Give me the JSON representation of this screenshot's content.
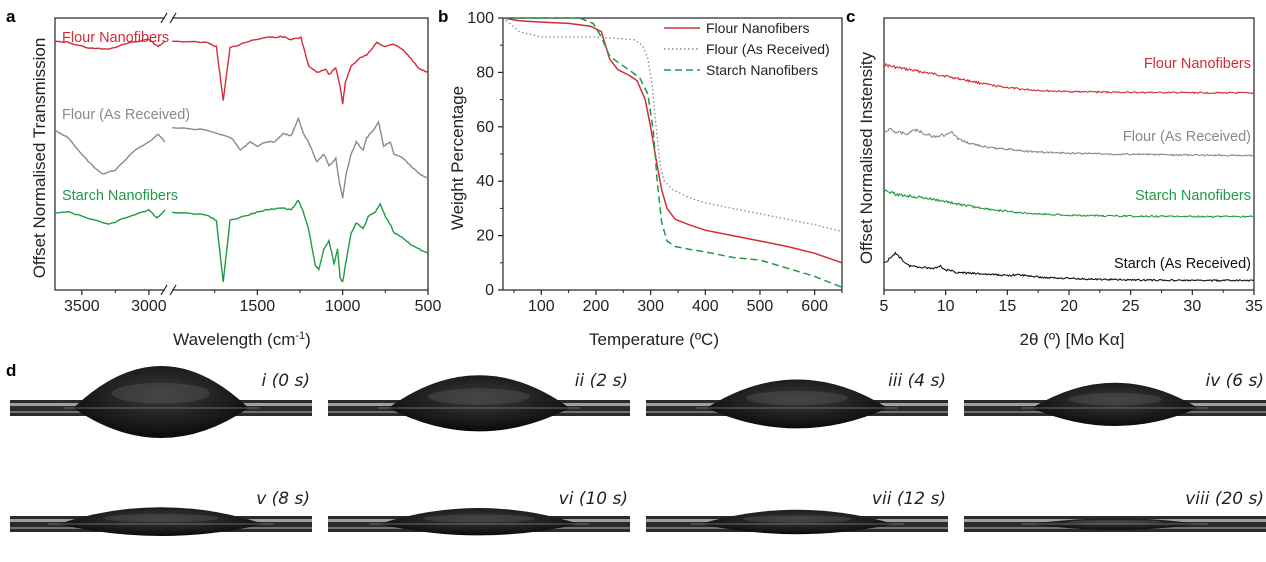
{
  "figure": {
    "panel_labels": [
      "a",
      "b",
      "c",
      "d"
    ],
    "colors": {
      "red": "#d42b3a",
      "gray": "#8a8a8a",
      "green": "#1f9a45",
      "black": "#111111"
    }
  },
  "chart_data": [
    {
      "panel": "a",
      "type": "line",
      "xlabel": "Wavelength (cm⁻¹)",
      "ylabel": "Offset Normalised Transmission",
      "xticks": [
        "3500",
        "3000",
        "1500",
        "1000",
        "500"
      ],
      "axis_break": true,
      "xlim_left": [
        3700,
        2880
      ],
      "xlim_right": [
        2000,
        500
      ],
      "series": [
        {
          "name": "Flour Nanofibers",
          "color": "#d42b3a",
          "points": [
            [
              3700,
              0.1
            ],
            [
              3600,
              0.12
            ],
            [
              3450,
              0.2
            ],
            [
              3300,
              0.22
            ],
            [
              3150,
              0.12
            ],
            [
              3000,
              0.08
            ],
            [
              2930,
              0.18
            ],
            [
              2880,
              0.1
            ],
            [
              2000,
              0.1
            ],
            [
              1800,
              0.12
            ],
            [
              1740,
              0.18
            ],
            [
              1700,
              0.95
            ],
            [
              1660,
              0.2
            ],
            [
              1550,
              0.1
            ],
            [
              1450,
              0.05
            ],
            [
              1350,
              0.04
            ],
            [
              1300,
              0.08
            ],
            [
              1245,
              0.05
            ],
            [
              1200,
              0.45
            ],
            [
              1150,
              0.55
            ],
            [
              1100,
              0.5
            ],
            [
              1080,
              0.58
            ],
            [
              1040,
              0.48
            ],
            [
              1015,
              0.75
            ],
            [
              1000,
              1.0
            ],
            [
              985,
              0.7
            ],
            [
              950,
              0.45
            ],
            [
              900,
              0.35
            ],
            [
              860,
              0.3
            ],
            [
              830,
              0.22
            ],
            [
              800,
              0.12
            ],
            [
              760,
              0.18
            ],
            [
              700,
              0.15
            ],
            [
              650,
              0.22
            ],
            [
              600,
              0.35
            ],
            [
              550,
              0.5
            ],
            [
              500,
              0.55
            ]
          ]
        },
        {
          "name": "Flour (As Received)",
          "color": "#8a8a8a",
          "points": [
            [
              3700,
              0.15
            ],
            [
              3600,
              0.25
            ],
            [
              3450,
              0.55
            ],
            [
              3350,
              0.7
            ],
            [
              3250,
              0.65
            ],
            [
              3100,
              0.4
            ],
            [
              3000,
              0.3
            ],
            [
              2930,
              0.2
            ],
            [
              2880,
              0.3
            ],
            [
              2000,
              0.12
            ],
            [
              1800,
              0.15
            ],
            [
              1650,
              0.25
            ],
            [
              1600,
              0.4
            ],
            [
              1540,
              0.3
            ],
            [
              1500,
              0.35
            ],
            [
              1450,
              0.3
            ],
            [
              1400,
              0.3
            ],
            [
              1350,
              0.2
            ],
            [
              1300,
              0.22
            ],
            [
              1260,
              0.0
            ],
            [
              1230,
              0.2
            ],
            [
              1200,
              0.3
            ],
            [
              1150,
              0.55
            ],
            [
              1110,
              0.45
            ],
            [
              1080,
              0.6
            ],
            [
              1040,
              0.5
            ],
            [
              1020,
              0.8
            ],
            [
              1000,
              1.0
            ],
            [
              980,
              0.7
            ],
            [
              950,
              0.45
            ],
            [
              920,
              0.3
            ],
            [
              880,
              0.4
            ],
            [
              860,
              0.25
            ],
            [
              820,
              0.15
            ],
            [
              790,
              0.05
            ],
            [
              760,
              0.35
            ],
            [
              720,
              0.3
            ],
            [
              700,
              0.45
            ],
            [
              650,
              0.5
            ],
            [
              600,
              0.6
            ],
            [
              550,
              0.7
            ],
            [
              500,
              0.75
            ]
          ]
        },
        {
          "name": "Starch Nanofibers",
          "color": "#1f9a45",
          "points": [
            [
              3700,
              0.15
            ],
            [
              3600,
              0.15
            ],
            [
              3450,
              0.22
            ],
            [
              3300,
              0.3
            ],
            [
              3150,
              0.2
            ],
            [
              3000,
              0.12
            ],
            [
              2940,
              0.22
            ],
            [
              2880,
              0.12
            ],
            [
              2000,
              0.15
            ],
            [
              1800,
              0.18
            ],
            [
              1740,
              0.25
            ],
            [
              1700,
              1.0
            ],
            [
              1660,
              0.25
            ],
            [
              1550,
              0.18
            ],
            [
              1450,
              0.12
            ],
            [
              1350,
              0.1
            ],
            [
              1300,
              0.12
            ],
            [
              1260,
              0.0
            ],
            [
              1230,
              0.15
            ],
            [
              1200,
              0.35
            ],
            [
              1160,
              0.8
            ],
            [
              1140,
              0.85
            ],
            [
              1110,
              0.6
            ],
            [
              1080,
              0.5
            ],
            [
              1050,
              0.78
            ],
            [
              1030,
              0.6
            ],
            [
              1015,
              0.95
            ],
            [
              1000,
              1.0
            ],
            [
              980,
              0.75
            ],
            [
              950,
              0.4
            ],
            [
              920,
              0.28
            ],
            [
              880,
              0.35
            ],
            [
              850,
              0.2
            ],
            [
              810,
              0.15
            ],
            [
              780,
              0.05
            ],
            [
              750,
              0.2
            ],
            [
              720,
              0.3
            ],
            [
              700,
              0.4
            ],
            [
              650,
              0.45
            ],
            [
              600,
              0.55
            ],
            [
              550,
              0.6
            ],
            [
              500,
              0.65
            ]
          ]
        }
      ]
    },
    {
      "panel": "b",
      "type": "line",
      "xlabel": "Temperature (ºC)",
      "ylabel": "Weight Percentage",
      "xlim": [
        30,
        650
      ],
      "ylim": [
        0,
        100
      ],
      "xticks": [
        100,
        200,
        300,
        400,
        500,
        600
      ],
      "yticks": [
        0,
        20,
        40,
        60,
        80,
        100
      ],
      "legend": "top-right",
      "series": [
        {
          "name": "Flour Nanofibers",
          "color": "#d42b3a",
          "style": "solid",
          "points": [
            [
              30,
              100
            ],
            [
              60,
              99
            ],
            [
              100,
              98.5
            ],
            [
              150,
              98
            ],
            [
              190,
              97
            ],
            [
              210,
              95
            ],
            [
              225,
              85
            ],
            [
              240,
              81
            ],
            [
              260,
              79
            ],
            [
              275,
              77
            ],
            [
              290,
              70
            ],
            [
              300,
              60
            ],
            [
              310,
              48
            ],
            [
              320,
              37
            ],
            [
              330,
              30
            ],
            [
              345,
              26
            ],
            [
              370,
              24
            ],
            [
              400,
              22
            ],
            [
              450,
              20
            ],
            [
              500,
              18
            ],
            [
              550,
              16
            ],
            [
              600,
              13.5
            ],
            [
              650,
              10
            ]
          ]
        },
        {
          "name": "Flour (As Received)",
          "color": "#8a8a8a",
          "style": "dotted",
          "points": [
            [
              30,
              100
            ],
            [
              60,
              95
            ],
            [
              100,
              93
            ],
            [
              150,
              93
            ],
            [
              200,
              93
            ],
            [
              240,
              92.5
            ],
            [
              270,
              92
            ],
            [
              285,
              90
            ],
            [
              295,
              85
            ],
            [
              303,
              75
            ],
            [
              310,
              60
            ],
            [
              318,
              45
            ],
            [
              325,
              40
            ],
            [
              340,
              37
            ],
            [
              370,
              34
            ],
            [
              400,
              32
            ],
            [
              450,
              30
            ],
            [
              500,
              28
            ],
            [
              550,
              26
            ],
            [
              600,
              24
            ],
            [
              650,
              21.5
            ]
          ]
        },
        {
          "name": "Starch Nanofibers",
          "color": "#1f9a45",
          "style": "dashed",
          "points": [
            [
              30,
              100
            ],
            [
              100,
              100
            ],
            [
              170,
              100
            ],
            [
              195,
              98
            ],
            [
              210,
              93
            ],
            [
              225,
              86
            ],
            [
              245,
              83
            ],
            [
              260,
              81
            ],
            [
              280,
              78
            ],
            [
              295,
              72
            ],
            [
              305,
              58
            ],
            [
              312,
              40
            ],
            [
              320,
              25
            ],
            [
              330,
              18
            ],
            [
              345,
              16
            ],
            [
              370,
              15
            ],
            [
              400,
              14
            ],
            [
              450,
              12
            ],
            [
              500,
              11
            ],
            [
              550,
              8
            ],
            [
              600,
              5
            ],
            [
              650,
              1
            ]
          ]
        }
      ]
    },
    {
      "panel": "c",
      "type": "line",
      "xlabel": "2θ (º) [Mo Kα]",
      "ylabel": "Offset Normalised Instensity",
      "xlim": [
        5,
        35
      ],
      "xticks": [
        5,
        10,
        15,
        20,
        25,
        30,
        35
      ],
      "series": [
        {
          "name": "Flour Nanofibers",
          "color": "#d42b3a",
          "points": [
            [
              5,
              1.0
            ],
            [
              6,
              0.9
            ],
            [
              8,
              0.75
            ],
            [
              10,
              0.6
            ],
            [
              12,
              0.42
            ],
            [
              14,
              0.25
            ],
            [
              16,
              0.14
            ],
            [
              18,
              0.08
            ],
            [
              20,
              0.05
            ],
            [
              25,
              0.02
            ],
            [
              30,
              0.01
            ],
            [
              35,
              0.0
            ]
          ]
        },
        {
          "name": "Flour (As Received)",
          "color": "#8a8a8a",
          "points": [
            [
              5,
              0.8
            ],
            [
              5.5,
              1.0
            ],
            [
              6,
              0.85
            ],
            [
              7,
              0.8
            ],
            [
              7.5,
              0.95
            ],
            [
              8,
              0.85
            ],
            [
              9,
              0.7
            ],
            [
              10,
              0.75
            ],
            [
              10.5,
              0.85
            ],
            [
              11,
              0.6
            ],
            [
              12,
              0.45
            ],
            [
              13.5,
              0.3
            ],
            [
              15,
              0.25
            ],
            [
              17,
              0.15
            ],
            [
              20,
              0.1
            ],
            [
              25,
              0.06
            ],
            [
              30,
              0.03
            ],
            [
              35,
              0.02
            ]
          ]
        },
        {
          "name": "Starch Nanofibers",
          "color": "#1f9a45",
          "points": [
            [
              5,
              1.0
            ],
            [
              6,
              0.8
            ],
            [
              8,
              0.7
            ],
            [
              10,
              0.55
            ],
            [
              12,
              0.38
            ],
            [
              14,
              0.25
            ],
            [
              16,
              0.15
            ],
            [
              18,
              0.1
            ],
            [
              20,
              0.06
            ],
            [
              25,
              0.03
            ],
            [
              30,
              0.02
            ],
            [
              35,
              0.01
            ]
          ]
        },
        {
          "name": "Starch (As Received)",
          "color": "#111111",
          "points": [
            [
              5,
              0.65
            ],
            [
              5.5,
              0.8
            ],
            [
              6,
              1.0
            ],
            [
              6.5,
              0.75
            ],
            [
              7,
              0.55
            ],
            [
              8,
              0.5
            ],
            [
              9,
              0.45
            ],
            [
              9.5,
              0.55
            ],
            [
              10,
              0.4
            ],
            [
              11,
              0.3
            ],
            [
              13,
              0.25
            ],
            [
              15,
              0.2
            ],
            [
              16,
              0.22
            ],
            [
              18,
              0.12
            ],
            [
              20,
              0.1
            ],
            [
              22,
              0.06
            ],
            [
              25,
              0.04
            ],
            [
              30,
              0.02
            ],
            [
              35,
              0.02
            ]
          ]
        }
      ]
    }
  ],
  "droplets": [
    {
      "caption": "i (0 s)",
      "height": 1.0,
      "width": 0.58
    },
    {
      "caption": "ii (2 s)",
      "height": 0.78,
      "width": 0.6
    },
    {
      "caption": "iii (4 s)",
      "height": 0.68,
      "width": 0.6
    },
    {
      "caption": "iv (6 s)",
      "height": 0.6,
      "width": 0.55
    },
    {
      "caption": "v (8 s)",
      "height": 0.4,
      "width": 0.68
    },
    {
      "caption": "vi (10 s)",
      "height": 0.38,
      "width": 0.66
    },
    {
      "caption": "vii (12 s)",
      "height": 0.34,
      "width": 0.64
    },
    {
      "caption": "viii (20 s)",
      "height": 0.14,
      "width": 0.55
    }
  ]
}
